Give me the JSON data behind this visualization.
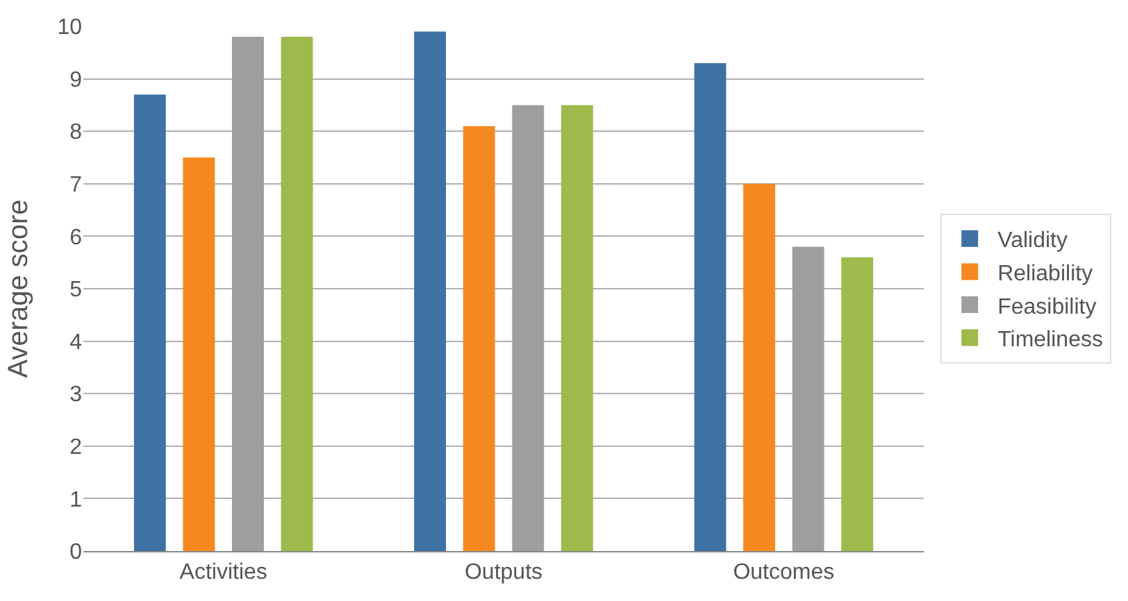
{
  "chart_data": {
    "type": "bar",
    "ylabel": "Average score",
    "categories": [
      "Activities",
      "Outputs",
      "Outcomes"
    ],
    "series": [
      {
        "name": "Validity",
        "color": "#3e72a4",
        "values": [
          8.7,
          9.9,
          9.3
        ]
      },
      {
        "name": "Reliability",
        "color": "#f5891f",
        "values": [
          7.5,
          8.1,
          7.0
        ]
      },
      {
        "name": "Feasibility",
        "color": "#9e9e9f",
        "values": [
          9.8,
          8.5,
          5.8
        ]
      },
      {
        "name": "Timeliness",
        "color": "#9dba4a",
        "values": [
          9.8,
          8.5,
          5.6
        ]
      }
    ],
    "ylim": [
      0,
      10
    ],
    "yticks": [
      0,
      1,
      2,
      3,
      4,
      5,
      6,
      7,
      8,
      9,
      10
    ],
    "grid": "y",
    "legend": "right"
  }
}
